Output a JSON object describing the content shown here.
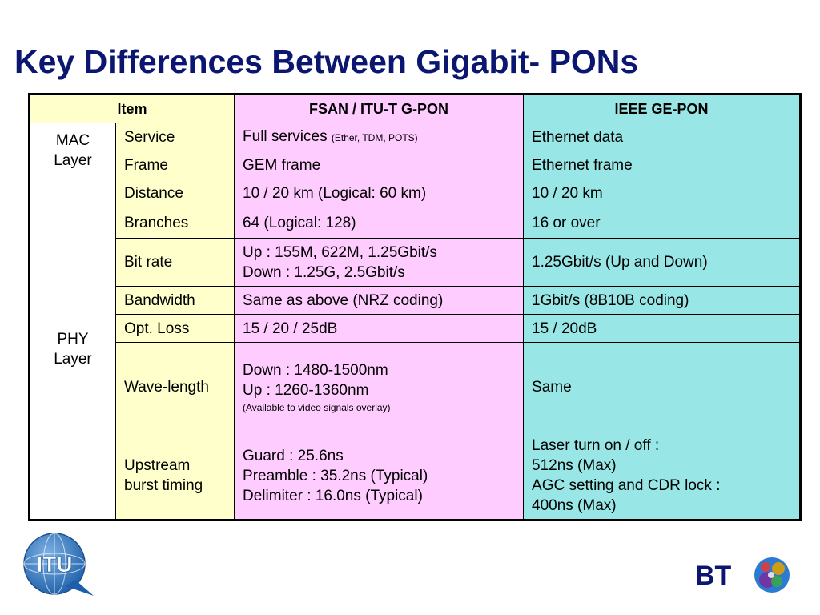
{
  "slide": {
    "title": "Key Differences Between Gigabit- PONs"
  },
  "table": {
    "headers": {
      "item": "Item",
      "gpon": "FSAN / ITU-T G-PON",
      "epon": "IEEE GE-PON"
    },
    "groups": {
      "mac": [
        "MAC",
        "Layer"
      ],
      "phy": [
        "PHY",
        "Layer"
      ]
    },
    "rows": {
      "service": {
        "item": "Service",
        "gpon": "Full services",
        "gpon_note": "(Ether, TDM, POTS)",
        "epon": "Ethernet data"
      },
      "frame": {
        "item": "Frame",
        "gpon": "GEM frame",
        "epon": "Ethernet frame"
      },
      "distance": {
        "item": "Distance",
        "gpon": "10 / 20 km (Logical: 60 km)",
        "epon": "10 / 20 km"
      },
      "branches": {
        "item": "Branches",
        "gpon": "64 (Logical: 128)",
        "epon": "16 or over"
      },
      "bitrate": {
        "item": "Bit rate",
        "gpon": [
          "Up : 155M, 622M, 1.25Gbit/s",
          "Down : 1.25G, 2.5Gbit/s"
        ],
        "epon": "1.25Gbit/s (Up and Down)"
      },
      "bandwidth": {
        "item": "Bandwidth",
        "gpon": "Same as above (NRZ coding)",
        "epon": "1Gbit/s (8B10B coding)"
      },
      "optloss": {
        "item": "Opt. Loss",
        "gpon": "15 / 20 / 25dB",
        "epon": "15 / 20dB"
      },
      "wavelength": {
        "item": "Wave-length",
        "gpon": [
          "Down : 1480-1500nm",
          "Up : 1260-1360nm"
        ],
        "gpon_note": "(Available to video signals overlay)",
        "epon": "Same"
      },
      "burst": {
        "item": [
          "Upstream",
          "burst timing"
        ],
        "gpon": [
          "Guard : 25.6ns",
          "Preamble : 35.2ns (Typical)",
          "Delimiter : 16.0ns (Typical)"
        ],
        "epon": [
          "Laser turn on / off :",
          "512ns (Max)",
          "AGC setting and CDR lock :",
          "400ns (Max)"
        ]
      }
    }
  },
  "logos": {
    "itu_text": "ITU",
    "bt_text": "BT"
  },
  "colors": {
    "title": "#0b1670",
    "item_bg": "#ffffcc",
    "gpon_bg": "#ffccff",
    "epon_bg": "#99e6e6"
  }
}
